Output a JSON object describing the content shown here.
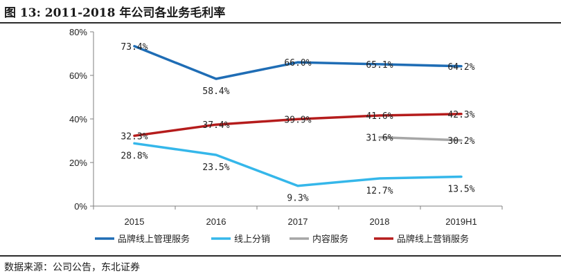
{
  "figure": {
    "title": "图 13:  2011-2018 年公司各业务毛利率",
    "source": "数据来源：公司公告，东北证券"
  },
  "chart_data": {
    "type": "line",
    "categories": [
      "2015",
      "2016",
      "2017",
      "2018",
      "2019H1"
    ],
    "ylim": [
      0,
      80
    ],
    "yticks": [
      "0%",
      "20%",
      "40%",
      "60%",
      "80%"
    ],
    "ytick_values": [
      0,
      20,
      40,
      60,
      80
    ],
    "grid": false,
    "legend_position": "bottom",
    "series": [
      {
        "name": "品牌线上管理服务",
        "color": "#1f6db5",
        "values": [
          73.4,
          58.4,
          66.0,
          65.1,
          64.2
        ],
        "labels": [
          "73.4%",
          "58.4%",
          "66.0%",
          "65.1%",
          "64.2%"
        ],
        "label_pos": [
          "on",
          "below",
          "on",
          "on",
          "on"
        ]
      },
      {
        "name": "线上分销",
        "color": "#35b7ea",
        "values": [
          28.8,
          23.5,
          9.3,
          12.7,
          13.5
        ],
        "labels": [
          "28.8%",
          "23.5%",
          "9.3%",
          "12.7%",
          "13.5%"
        ],
        "label_pos": [
          "below",
          "below",
          "below",
          "below",
          "below"
        ]
      },
      {
        "name": "内容服务",
        "color": "#a6a6a6",
        "values": [
          null,
          null,
          null,
          31.6,
          30.2
        ],
        "labels": [
          null,
          null,
          null,
          "31.6%",
          "30.2%"
        ],
        "label_pos": [
          null,
          null,
          null,
          "on",
          "on"
        ]
      },
      {
        "name": "品牌线上营销服务",
        "color": "#b51c1c",
        "values": [
          32.3,
          37.4,
          39.9,
          41.6,
          42.3
        ],
        "labels": [
          "32.3%",
          "37.4%",
          "39.9%",
          "41.6%",
          "42.3%"
        ],
        "label_pos": [
          "on",
          "on",
          "on",
          "on",
          "on"
        ]
      }
    ]
  }
}
